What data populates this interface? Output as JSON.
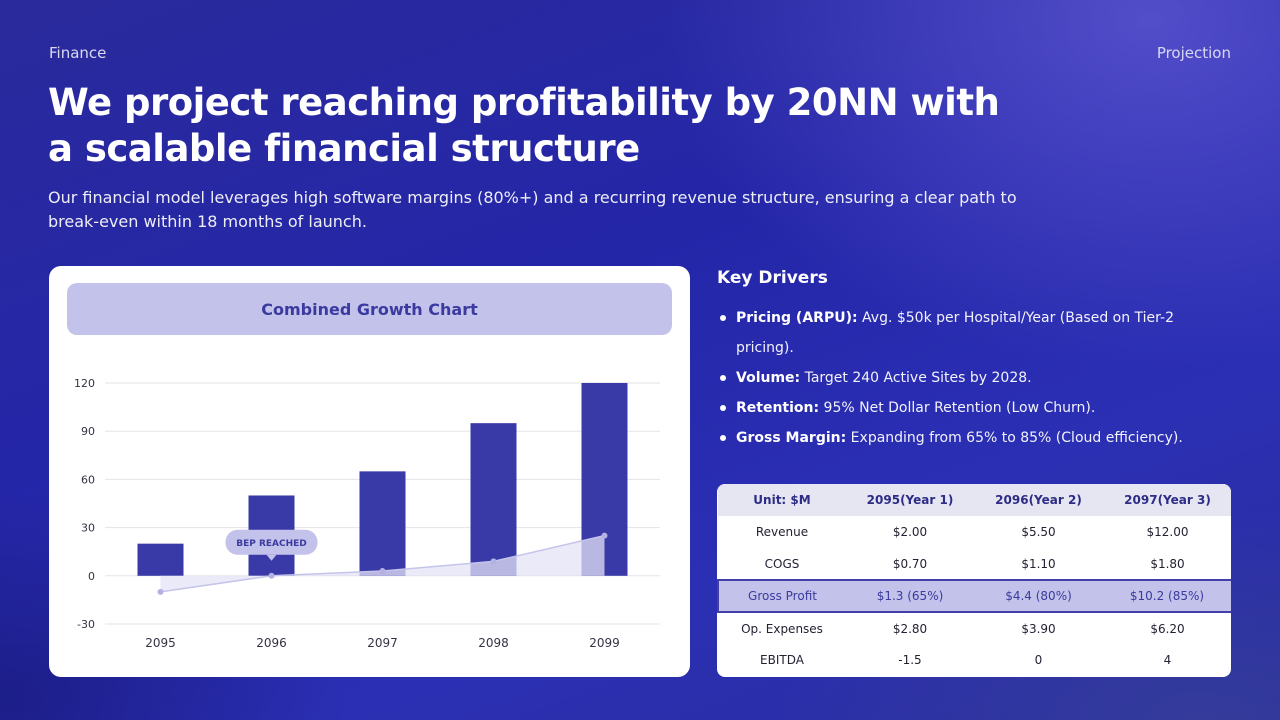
{
  "header": {
    "section": "Finance",
    "topic": "Projection"
  },
  "title": "We project reaching profitability by 20NN with a scalable financial structure",
  "subtitle": "Our financial model leverages high software margins (80%+) and a recurring revenue structure, ensuring a clear path to break-even within 18 months of launch.",
  "chart_card": {
    "header": "Combined Growth Chart"
  },
  "chart_data": {
    "type": "bar",
    "title": "Combined Growth Chart",
    "categories": [
      "2095",
      "2096",
      "2097",
      "2098",
      "2099"
    ],
    "series": [
      {
        "type": "bar",
        "values": [
          20,
          50,
          65,
          95,
          120
        ]
      },
      {
        "type": "area",
        "values": [
          -10,
          0,
          3,
          9,
          25
        ]
      }
    ],
    "ylim": [
      -30,
      120
    ],
    "yticks": [
      -30,
      0,
      30,
      60,
      90,
      120
    ],
    "grid": true,
    "annotations": [
      {
        "text": "BEP REACHED",
        "category": "2096",
        "value": 0
      }
    ],
    "colors": {
      "bar": "#3a39a8",
      "line": "#c5c4ea",
      "marker": "#b3b1e4",
      "area": "#e4e3f6",
      "annotation_bg": "#c3c2ea",
      "annotation_text": "#3b3aa0"
    }
  },
  "drivers": {
    "title": "Key Drivers",
    "items": [
      {
        "label": "Pricing (ARPU):",
        "text": " Avg. $50k per Hospital/Year (Based on Tier-2 pricing)."
      },
      {
        "label": "Volume:",
        "text": " Target 240 Active Sites by 2028."
      },
      {
        "label": "Retention:",
        "text": " 95% Net Dollar Retention (Low Churn)."
      },
      {
        "label": "Gross Margin:",
        "text": " Expanding from 65% to  85% (Cloud efficiency)."
      }
    ]
  },
  "table": {
    "headers": [
      "Unit: $M",
      "2095(Year 1)",
      "2096(Year 2)",
      "2097(Year 3)"
    ],
    "rows": [
      {
        "cells": [
          "Revenue",
          "$2.00",
          "$5.50",
          "$12.00"
        ],
        "highlight": false
      },
      {
        "cells": [
          "COGS",
          "$0.70",
          "$1.10",
          "$1.80"
        ],
        "highlight": false
      },
      {
        "cells": [
          "Gross Profit",
          "$1.3 (65%)",
          "$4.4 (80%)",
          "$10.2 (85%)"
        ],
        "highlight": true
      },
      {
        "cells": [
          "Op. Expenses",
          "$2.80",
          "$3.90",
          "$6.20"
        ],
        "highlight": false
      },
      {
        "cells": [
          "EBITDA",
          "-1.5",
          "0",
          "4"
        ],
        "highlight": false
      }
    ]
  }
}
